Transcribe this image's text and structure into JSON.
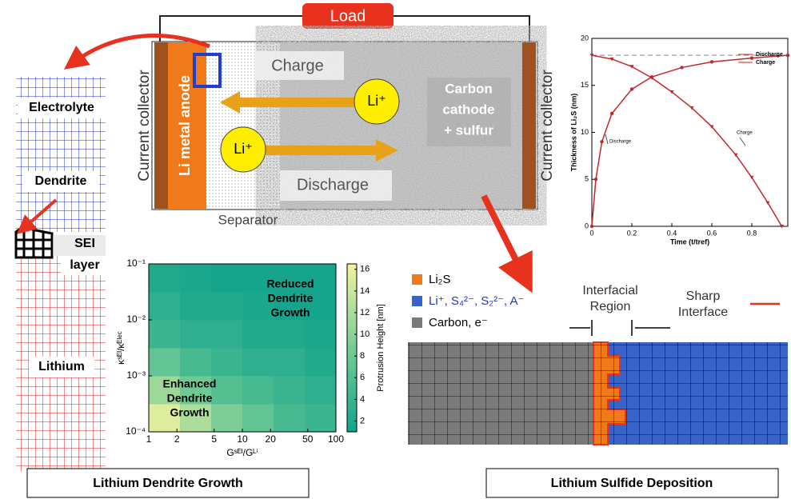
{
  "battery": {
    "load": "Load",
    "charge": "Charge",
    "discharge": "Discharge",
    "ion_top": "Li⁺",
    "ion_bottom": "Li⁺",
    "cathode": [
      "Carbon",
      "cathode",
      "+ sulfur"
    ],
    "left_collector": "Current collector",
    "right_collector": "Current collector",
    "anode": "Li metal anode",
    "separator": "Separator"
  },
  "dendrite_mesh": {
    "electrolyte": "Electrolyte",
    "dendrite": "Dendrite",
    "sei": [
      "SEI",
      "layer"
    ],
    "lithium": "Lithium"
  },
  "deposition": {
    "legend": [
      "Li₂S",
      "Li⁺, S₄²⁻, S₂²⁻, A⁻",
      "Carbon, e⁻"
    ],
    "interfacial": [
      "Interfacial",
      "Region"
    ],
    "sharp": [
      "Sharp",
      "Interface"
    ]
  },
  "captions": [
    "Lithium Dendrite Growth",
    "Lithium Sulfide Deposition"
  ],
  "chart_data": [
    {
      "type": "line",
      "xlabel": "Time (t/tref)",
      "ylabel": "Thickness of Li₂S (nm)",
      "xlim": [
        0,
        0.98
      ],
      "ylim": [
        0,
        20
      ],
      "xticks": [
        0,
        0.2,
        0.4,
        0.6,
        0.8
      ],
      "yticks": [
        0,
        5,
        10,
        15,
        20
      ],
      "reference_line": 18.2,
      "legend": "upper right",
      "annotations": [
        "Discharge",
        "Charge"
      ],
      "series": [
        {
          "name": "Discharge",
          "color": "#c0282c",
          "marker": "circle",
          "x": [
            0,
            0.02,
            0.05,
            0.1,
            0.2,
            0.3,
            0.45,
            0.6,
            0.8,
            0.98
          ],
          "values": [
            0,
            5,
            9,
            12,
            14.6,
            15.9,
            16.9,
            17.5,
            17.9,
            18.2
          ]
        },
        {
          "name": "Charge",
          "color": "#c0282c",
          "marker": "triangle",
          "x": [
            0,
            0.1,
            0.2,
            0.3,
            0.4,
            0.5,
            0.6,
            0.72,
            0.8,
            0.88,
            0.95
          ],
          "values": [
            18.2,
            17.8,
            17,
            15.8,
            14.3,
            12.6,
            10.6,
            7.6,
            5.2,
            2.5,
            0
          ]
        }
      ]
    },
    {
      "type": "heatmap",
      "xlabel": "Gˢᴱᴵ/Gᴸⁱ",
      "ylabel": "κˢᴱᴵ/κᴱˡᵉᶜ",
      "xlog": true,
      "ylog": true,
      "xlim": [
        1,
        100
      ],
      "ylim": [
        0.0001,
        0.1
      ],
      "xticks": [
        1,
        2,
        5,
        10,
        20,
        50,
        100
      ],
      "yticks": [
        {
          "value": 0.0001,
          "label": "10⁻⁴"
        },
        {
          "value": 0.001,
          "label": "10⁻³"
        },
        {
          "value": 0.01,
          "label": "10⁻²"
        },
        {
          "value": 0.1,
          "label": "10⁻¹"
        }
      ],
      "z": [
        [
          15,
          12,
          9,
          7,
          5,
          4
        ],
        [
          11,
          8,
          6,
          5,
          4,
          3
        ],
        [
          7,
          5,
          4,
          3,
          3,
          2
        ],
        [
          4,
          3,
          3,
          2,
          2,
          1.5
        ],
        [
          3,
          2,
          2,
          1.5,
          1,
          1
        ],
        [
          2,
          1.5,
          1,
          1,
          1,
          1
        ]
      ],
      "colorbar_label": "Protrusion Height [nm]",
      "clim": [
        1,
        16.5
      ],
      "cticks": [
        2,
        4,
        6,
        8,
        10,
        12,
        14,
        16
      ],
      "annotations": [
        [
          "Reduced",
          "Dendrite",
          "Growth"
        ],
        [
          "Enhanced",
          "Dendrite",
          "Growth"
        ]
      ]
    }
  ]
}
